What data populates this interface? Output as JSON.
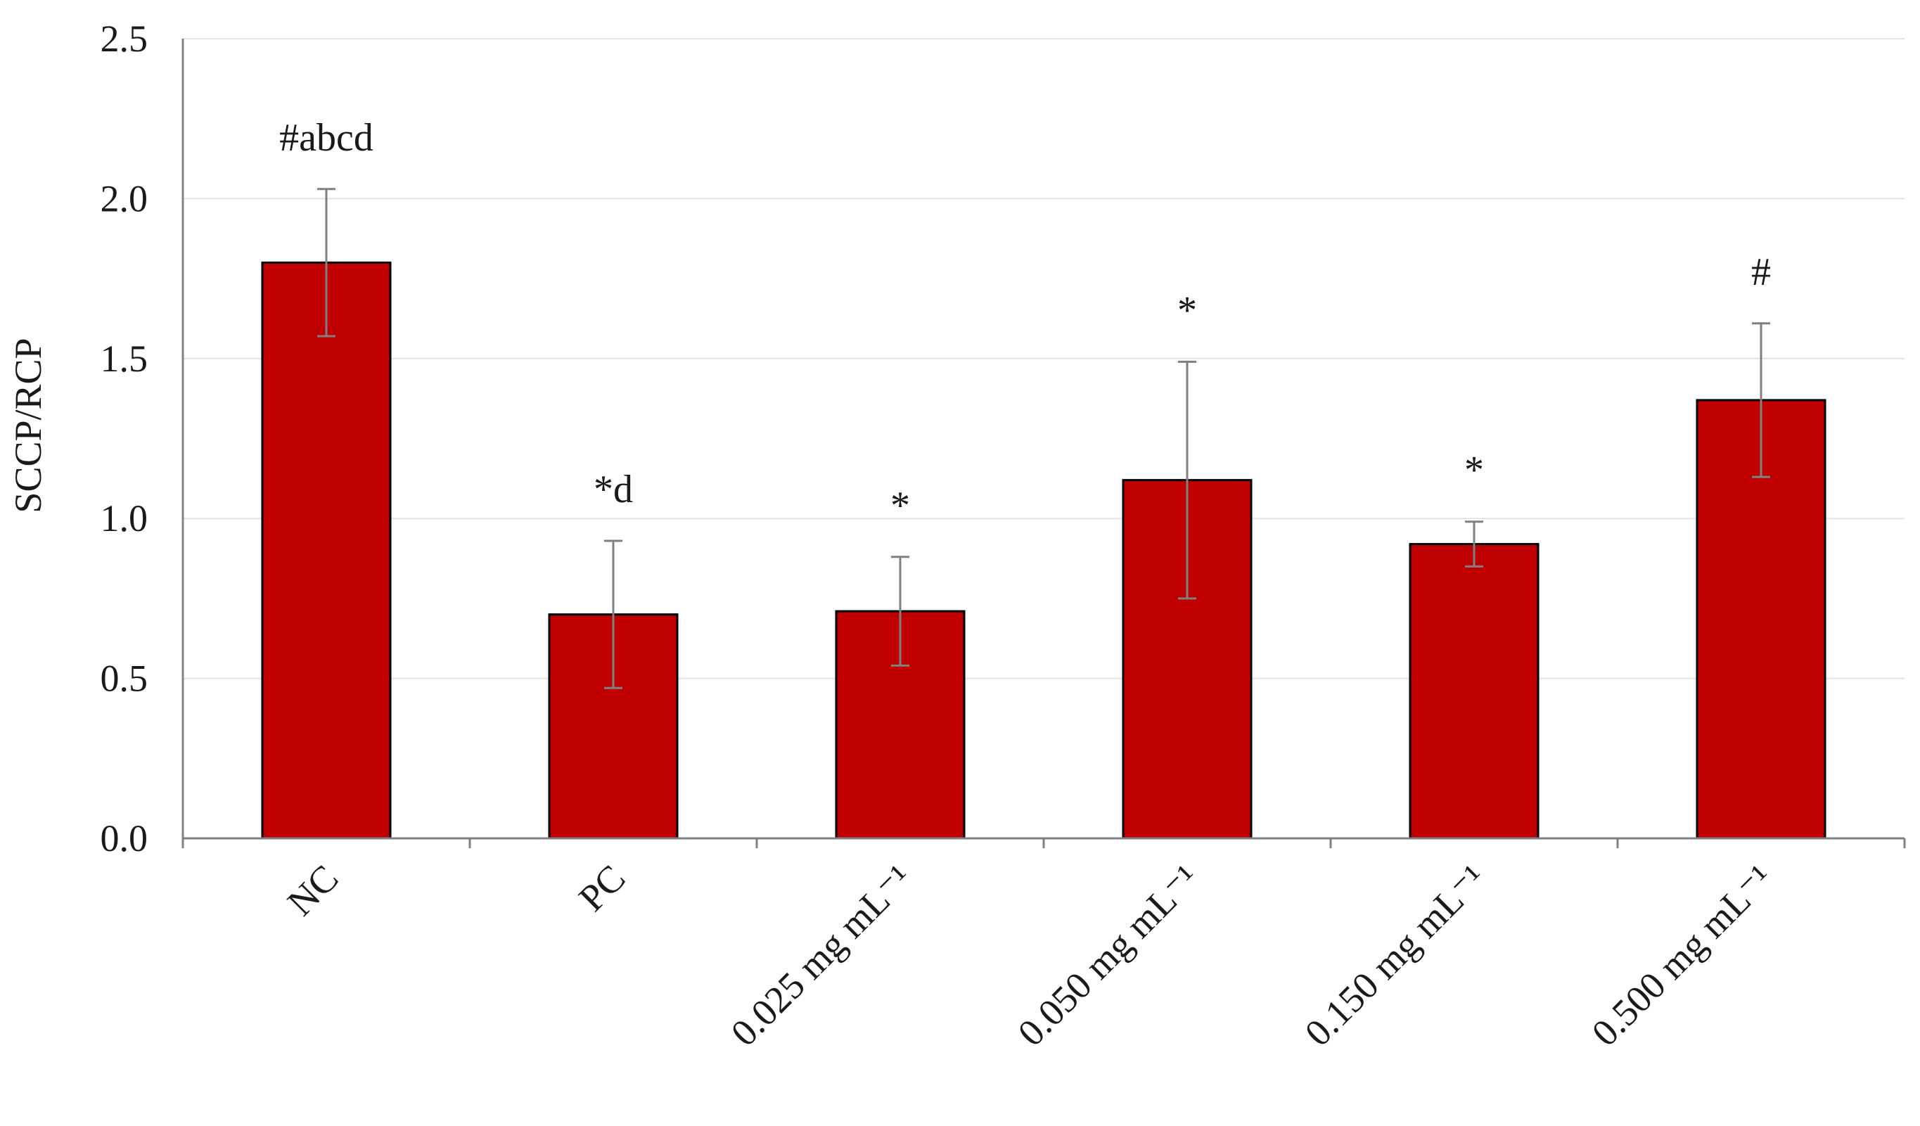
{
  "chart_data": {
    "type": "bar",
    "title": "",
    "xlabel": "",
    "ylabel": "SCCP/RCP",
    "ylim": [
      0,
      2.5
    ],
    "yticks": [
      "0.0",
      "0.5",
      "1.0",
      "1.5",
      "2.0",
      "2.5"
    ],
    "grid": true,
    "legend": "none",
    "categories": [
      "NC",
      "PC",
      "0.025 mg mL⁻¹",
      "0.050 mg mL⁻¹",
      "0.150 mg mL⁻¹",
      "0.500 mg mL⁻¹"
    ],
    "values": [
      1.8,
      0.7,
      0.71,
      1.12,
      0.92,
      1.37
    ],
    "errors": [
      0.23,
      0.23,
      0.17,
      0.37,
      0.07,
      0.24
    ],
    "annotations": [
      "#abcd",
      "*d",
      "*",
      "*",
      "*",
      "#"
    ],
    "bar_color": "#c00000",
    "bar_edge_color": "#000000",
    "error_color": "#808080",
    "grid_color": "#e3e3e3",
    "axis_color": "#808080"
  }
}
